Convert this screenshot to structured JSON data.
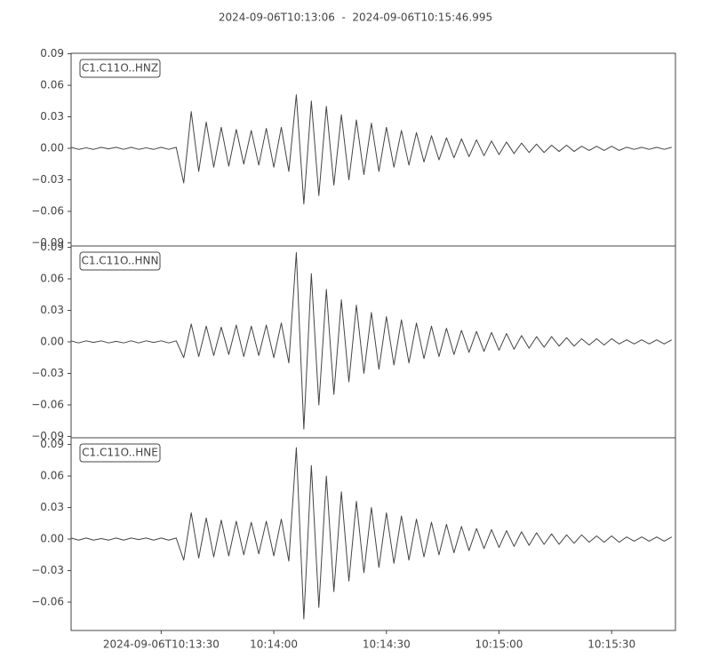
{
  "title": "2024-09-06T10:13:06  -  2024-09-06T10:15:46.995",
  "chart_data": [
    {
      "type": "line",
      "x": [
        "10:13:06",
        "10:13:08",
        "10:13:10",
        "10:13:12",
        "10:13:14",
        "10:13:16",
        "10:13:18",
        "10:13:20",
        "10:13:22",
        "10:13:24",
        "10:13:26",
        "10:13:28",
        "10:13:30",
        "10:13:32",
        "10:13:34",
        "10:13:36",
        "10:13:38",
        "10:13:40",
        "10:13:42",
        "10:13:44",
        "10:13:46",
        "10:13:48",
        "10:13:50",
        "10:13:52",
        "10:13:54",
        "10:13:56",
        "10:13:58",
        "10:14:00",
        "10:14:02",
        "10:14:04",
        "10:14:06",
        "10:14:08",
        "10:14:10",
        "10:14:12",
        "10:14:14",
        "10:14:16",
        "10:14:18",
        "10:14:20",
        "10:14:22",
        "10:14:24",
        "10:14:26",
        "10:14:28",
        "10:14:30",
        "10:14:32",
        "10:14:34",
        "10:14:36",
        "10:14:38",
        "10:14:40",
        "10:14:42",
        "10:14:44",
        "10:14:46",
        "10:14:48",
        "10:14:50",
        "10:14:52",
        "10:14:54",
        "10:14:56",
        "10:14:58",
        "10:15:00",
        "10:15:02",
        "10:15:04",
        "10:15:06",
        "10:15:08",
        "10:15:10",
        "10:15:12",
        "10:15:14",
        "10:15:16",
        "10:15:18",
        "10:15:20",
        "10:15:22",
        "10:15:24",
        "10:15:26",
        "10:15:28",
        "10:15:30",
        "10:15:32",
        "10:15:34",
        "10:15:36",
        "10:15:38",
        "10:15:40",
        "10:15:42",
        "10:15:44",
        "10:15:46"
      ],
      "series": [
        {
          "name": "C1.C11O..HNZ",
          "color": "#444444",
          "values": [
            0.001,
            -0.001,
            0.0005,
            -0.001,
            0.001,
            -0.0005,
            0.001,
            -0.001,
            0.001,
            -0.001,
            0.0005,
            -0.001,
            0.001,
            -0.001,
            0.001,
            -0.033,
            0.035,
            -0.022,
            0.025,
            -0.018,
            0.02,
            -0.017,
            0.018,
            -0.015,
            0.017,
            -0.016,
            0.019,
            -0.018,
            0.02,
            -0.022,
            0.051,
            -0.053,
            0.045,
            -0.045,
            0.04,
            -0.035,
            0.032,
            -0.03,
            0.027,
            -0.025,
            0.024,
            -0.022,
            0.02,
            -0.018,
            0.017,
            -0.016,
            0.015,
            -0.013,
            0.012,
            -0.011,
            0.01,
            -0.009,
            0.009,
            -0.008,
            0.008,
            -0.007,
            0.007,
            -0.006,
            0.006,
            -0.005,
            0.005,
            -0.004,
            0.004,
            -0.004,
            0.003,
            -0.003,
            0.003,
            -0.003,
            0.002,
            -0.002,
            0.002,
            -0.002,
            0.002,
            -0.002,
            0.001,
            -0.001,
            0.001,
            -0.001,
            0.001,
            -0.001,
            0.001
          ]
        }
      ],
      "xlim": [
        "10:13:06",
        "10:15:46.995"
      ],
      "ylim": [
        -0.093,
        0.0905
      ],
      "yticks": [
        {
          "value": -0.09,
          "label": "−0.09"
        },
        {
          "value": -0.06,
          "label": "−0.06"
        },
        {
          "value": -0.03,
          "label": "−0.03"
        },
        {
          "value": 0,
          "label": "0.00"
        },
        0.03,
        0.06,
        0.09
      ]
    },
    {
      "type": "line",
      "x": [
        "10:13:06",
        "10:13:08",
        "10:13:10",
        "10:13:12",
        "10:13:14",
        "10:13:16",
        "10:13:18",
        "10:13:20",
        "10:13:22",
        "10:13:24",
        "10:13:26",
        "10:13:28",
        "10:13:30",
        "10:13:32",
        "10:13:34",
        "10:13:36",
        "10:13:38",
        "10:13:40",
        "10:13:42",
        "10:13:44",
        "10:13:46",
        "10:13:48",
        "10:13:50",
        "10:13:52",
        "10:13:54",
        "10:13:56",
        "10:13:58",
        "10:14:00",
        "10:14:02",
        "10:14:04",
        "10:14:06",
        "10:14:08",
        "10:14:10",
        "10:14:12",
        "10:14:14",
        "10:14:16",
        "10:14:18",
        "10:14:20",
        "10:14:22",
        "10:14:24",
        "10:14:26",
        "10:14:28",
        "10:14:30",
        "10:14:32",
        "10:14:34",
        "10:14:36",
        "10:14:38",
        "10:14:40",
        "10:14:42",
        "10:14:44",
        "10:14:46",
        "10:14:48",
        "10:14:50",
        "10:14:52",
        "10:14:54",
        "10:14:56",
        "10:14:58",
        "10:15:00",
        "10:15:02",
        "10:15:04",
        "10:15:06",
        "10:15:08",
        "10:15:10",
        "10:15:12",
        "10:15:14",
        "10:15:16",
        "10:15:18",
        "10:15:20",
        "10:15:22",
        "10:15:24",
        "10:15:26",
        "10:15:28",
        "10:15:30",
        "10:15:32",
        "10:15:34",
        "10:15:36",
        "10:15:38",
        "10:15:40",
        "10:15:42",
        "10:15:44",
        "10:15:46"
      ],
      "series": [
        {
          "name": "C1.C11O..HNN",
          "color": "#444444",
          "values": [
            0.001,
            -0.001,
            0.001,
            -0.0005,
            0.001,
            -0.001,
            0.0005,
            -0.001,
            0.001,
            -0.001,
            0.001,
            -0.0005,
            0.001,
            -0.001,
            0.001,
            -0.015,
            0.017,
            -0.014,
            0.015,
            -0.013,
            0.014,
            -0.012,
            0.016,
            -0.014,
            0.015,
            -0.013,
            0.016,
            -0.015,
            0.018,
            -0.02,
            0.085,
            -0.083,
            0.065,
            -0.06,
            0.05,
            -0.05,
            0.04,
            -0.038,
            0.035,
            -0.03,
            0.028,
            -0.026,
            0.024,
            -0.022,
            0.021,
            -0.02,
            0.018,
            -0.016,
            0.015,
            -0.014,
            0.013,
            -0.012,
            0.011,
            -0.01,
            0.01,
            -0.009,
            0.009,
            -0.008,
            0.008,
            -0.007,
            0.006,
            -0.006,
            0.005,
            -0.005,
            0.005,
            -0.004,
            0.004,
            -0.004,
            0.003,
            -0.003,
            0.003,
            -0.003,
            0.003,
            -0.002,
            0.002,
            -0.002,
            0.002,
            -0.002,
            0.002,
            -0.002,
            0.002
          ]
        }
      ],
      "xlim": [
        "10:13:06",
        "10:15:46.995"
      ],
      "ylim": [
        -0.0913,
        0.0913
      ],
      "yticks": [
        {
          "value": -0.09,
          "label": "−0.09"
        },
        {
          "value": -0.06,
          "label": "−0.06"
        },
        {
          "value": -0.03,
          "label": "−0.03"
        },
        {
          "value": 0,
          "label": "0.00"
        },
        0.03,
        0.06,
        0.09
      ]
    },
    {
      "type": "line",
      "x": [
        "10:13:06",
        "10:13:08",
        "10:13:10",
        "10:13:12",
        "10:13:14",
        "10:13:16",
        "10:13:18",
        "10:13:20",
        "10:13:22",
        "10:13:24",
        "10:13:26",
        "10:13:28",
        "10:13:30",
        "10:13:32",
        "10:13:34",
        "10:13:36",
        "10:13:38",
        "10:13:40",
        "10:13:42",
        "10:13:44",
        "10:13:46",
        "10:13:48",
        "10:13:50",
        "10:13:52",
        "10:13:54",
        "10:13:56",
        "10:13:58",
        "10:14:00",
        "10:14:02",
        "10:14:04",
        "10:14:06",
        "10:14:08",
        "10:14:10",
        "10:14:12",
        "10:14:14",
        "10:14:16",
        "10:14:18",
        "10:14:20",
        "10:14:22",
        "10:14:24",
        "10:14:26",
        "10:14:28",
        "10:14:30",
        "10:14:32",
        "10:14:34",
        "10:14:36",
        "10:14:38",
        "10:14:40",
        "10:14:42",
        "10:14:44",
        "10:14:46",
        "10:14:48",
        "10:14:50",
        "10:14:52",
        "10:14:54",
        "10:14:56",
        "10:14:58",
        "10:15:00",
        "10:15:02",
        "10:15:04",
        "10:15:06",
        "10:15:08",
        "10:15:10",
        "10:15:12",
        "10:15:14",
        "10:15:16",
        "10:15:18",
        "10:15:20",
        "10:15:22",
        "10:15:24",
        "10:15:26",
        "10:15:28",
        "10:15:30",
        "10:15:32",
        "10:15:34",
        "10:15:36",
        "10:15:38",
        "10:15:40",
        "10:15:42",
        "10:15:44",
        "10:15:46"
      ],
      "series": [
        {
          "name": "C1.C11O..HNE",
          "color": "#444444",
          "values": [
            0.001,
            -0.001,
            0.001,
            -0.001,
            0.0005,
            -0.001,
            0.001,
            -0.001,
            0.001,
            -0.0005,
            0.001,
            -0.001,
            0.001,
            -0.001,
            0.001,
            -0.02,
            0.025,
            -0.018,
            0.02,
            -0.017,
            0.018,
            -0.016,
            0.017,
            -0.015,
            0.016,
            -0.014,
            0.017,
            -0.016,
            0.019,
            -0.021,
            0.087,
            -0.076,
            0.07,
            -0.065,
            0.06,
            -0.05,
            0.045,
            -0.04,
            0.036,
            -0.032,
            0.03,
            -0.027,
            0.025,
            -0.023,
            0.022,
            -0.02,
            0.019,
            -0.017,
            0.016,
            -0.015,
            0.014,
            -0.013,
            0.012,
            -0.011,
            0.01,
            -0.009,
            0.009,
            -0.008,
            0.008,
            -0.007,
            0.007,
            -0.006,
            0.006,
            -0.005,
            0.005,
            -0.005,
            0.004,
            -0.004,
            0.004,
            -0.003,
            0.003,
            -0.003,
            0.003,
            -0.003,
            0.002,
            -0.002,
            0.002,
            -0.002,
            0.002,
            -0.002,
            0.002
          ]
        }
      ],
      "xlim": [
        "10:13:06",
        "10:15:46.995"
      ],
      "ylim": [
        -0.087,
        0.0964
      ],
      "yticks": [
        {
          "value": -0.06,
          "label": "−0.06"
        },
        {
          "value": -0.03,
          "label": "−0.03"
        },
        {
          "value": 0,
          "label": "0.00"
        },
        0.03,
        0.06,
        0.09
      ],
      "xticks": [
        {
          "value": "10:13:30",
          "label": "2024-09-06T10:13:30"
        },
        "10:14:00",
        "10:14:30",
        "10:15:00",
        "10:15:30"
      ]
    }
  ]
}
